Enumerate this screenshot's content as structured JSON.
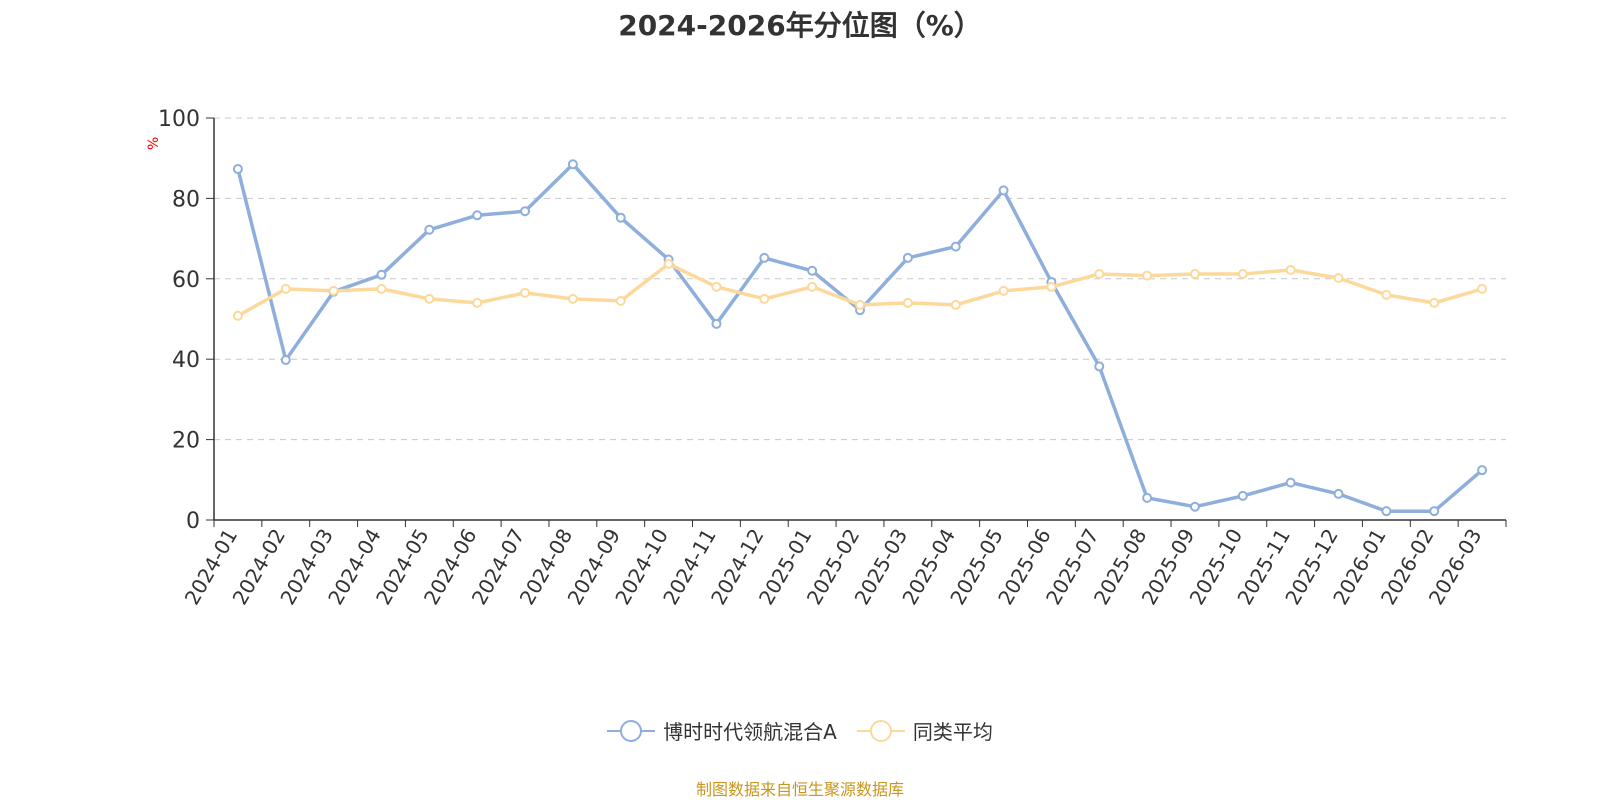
{
  "chart_data": {
    "type": "line",
    "title": "2024-2026年分位图（%）",
    "ylabel": "%",
    "ylim": [
      0,
      100
    ],
    "yticks": [
      0,
      20,
      40,
      60,
      80,
      100
    ],
    "grid": true,
    "legend_position": "bottom",
    "categories": [
      "2024-01",
      "2024-02",
      "2024-03",
      "2024-04",
      "2024-05",
      "2024-06",
      "2024-07",
      "2024-08",
      "2024-09",
      "2024-10",
      "2024-11",
      "2024-12",
      "2025-01",
      "2025-02",
      "2025-03",
      "2025-04",
      "2025-05",
      "2025-06",
      "2025-07",
      "2025-08",
      "2025-09",
      "2025-10",
      "2025-11",
      "2025-12",
      "2026-01",
      "2026-02",
      "2026-03"
    ],
    "series": [
      {
        "name": "博时时代领航混合A",
        "color": "#8eaedb",
        "values": [
          87.3,
          39.8,
          56.8,
          61.0,
          72.2,
          75.8,
          76.8,
          88.5,
          75.2,
          64.8,
          48.8,
          65.2,
          62.0,
          52.2,
          65.2,
          68.0,
          82.0,
          59.2,
          38.2,
          5.5,
          3.3,
          6.0,
          9.3,
          6.5,
          2.2,
          2.2,
          12.4
        ]
      },
      {
        "name": "同类平均",
        "color": "#fcd99b",
        "values": [
          50.8,
          57.5,
          57.0,
          57.5,
          55.0,
          54.0,
          56.5,
          55.0,
          54.5,
          63.7,
          58.0,
          55.0,
          58.0,
          53.5,
          54.0,
          53.5,
          57.0,
          58.0,
          61.2,
          60.8,
          61.2,
          61.2,
          62.2,
          60.2,
          56.0,
          54.0,
          57.5
        ]
      }
    ]
  },
  "source_text": "制图数据来自恒生聚源数据库",
  "colors": {
    "title": "#333333",
    "axis": "#333333",
    "grid": "#c8c8c8",
    "ylabel": "#ff0000",
    "source": "#c8961e"
  }
}
